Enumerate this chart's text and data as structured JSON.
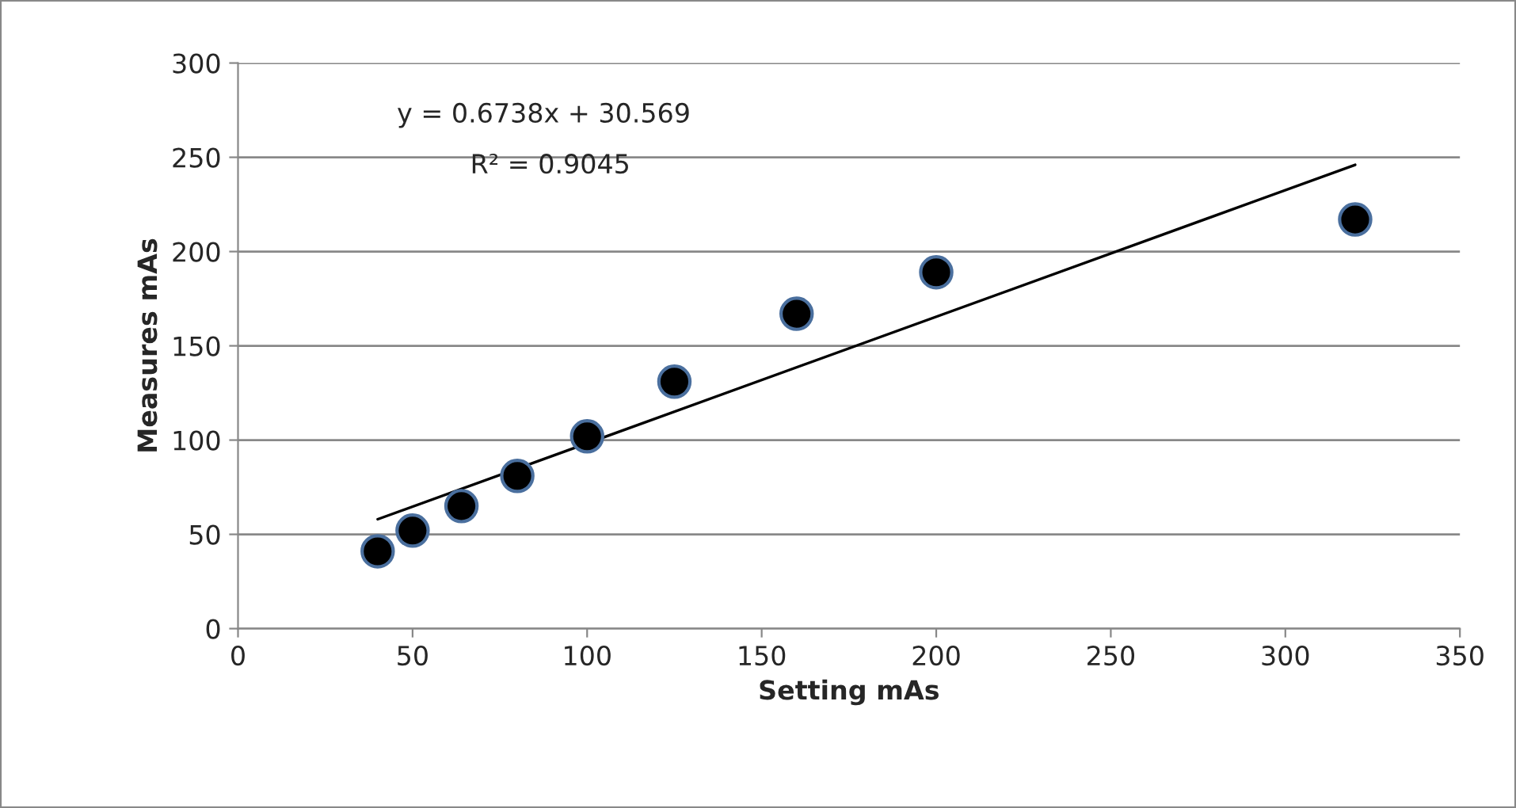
{
  "chart_data": {
    "type": "scatter",
    "xlabel": "Setting mAs",
    "ylabel": "Measures mAs",
    "x": [
      40,
      50,
      64,
      80,
      100,
      125,
      160,
      200,
      320
    ],
    "series": [
      {
        "color": "#000000",
        "marker": "circle",
        "values": [
          41,
          52,
          65,
          81,
          102,
          131,
          167,
          189,
          217
        ]
      },
      {
        "type": "line",
        "color": "#000000",
        "x": [
          40,
          320
        ],
        "values": [
          58,
          246
        ]
      }
    ],
    "annotations": [
      "y = 0.6738x + 30.569",
      "R² = 0.9045"
    ],
    "xlim": [
      0,
      350
    ],
    "xticks": [
      0,
      50,
      100,
      150,
      200,
      250,
      300,
      350
    ],
    "ylim": [
      0,
      300
    ],
    "yticks": [
      0,
      50,
      100,
      150,
      200,
      250,
      300
    ],
    "grid": "y",
    "legend": false
  }
}
